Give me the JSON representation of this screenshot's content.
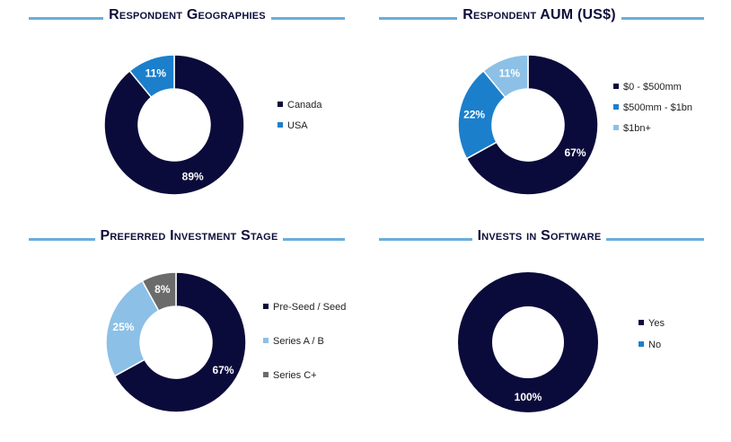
{
  "chart_data": [
    {
      "type": "pie",
      "title": "Respondent Geographies",
      "categories": [
        "Canada",
        "USA"
      ],
      "values": [
        89,
        11
      ],
      "labels": [
        "89%",
        "11%"
      ],
      "colors": [
        "#0b0b3b",
        "#1b7fcc"
      ],
      "legend": "right"
    },
    {
      "type": "pie",
      "title": "Respondent AUM (US$)",
      "categories": [
        "$0 - $500mm",
        "$500mm - $1bn",
        "$1bn+"
      ],
      "values": [
        67,
        22,
        11
      ],
      "labels": [
        "67%",
        "22%",
        "11%"
      ],
      "colors": [
        "#0b0b3b",
        "#1b7fcc",
        "#8cc0e6"
      ],
      "legend": "right"
    },
    {
      "type": "pie",
      "title": "Preferred Investment Stage",
      "categories": [
        "Pre-Seed / Seed",
        "Series A / B",
        "Series C+"
      ],
      "values": [
        67,
        25,
        8
      ],
      "labels": [
        "67%",
        "25%",
        "8%"
      ],
      "colors": [
        "#0b0b3b",
        "#8cc0e6",
        "#6b6b6b"
      ],
      "legend": "right"
    },
    {
      "type": "pie",
      "title": "Invests in Software",
      "categories": [
        "Yes",
        "No"
      ],
      "values": [
        100,
        0
      ],
      "labels": [
        "100%",
        ""
      ],
      "colors": [
        "#0b0b3b",
        "#1b7fcc"
      ],
      "legend": "right"
    }
  ]
}
